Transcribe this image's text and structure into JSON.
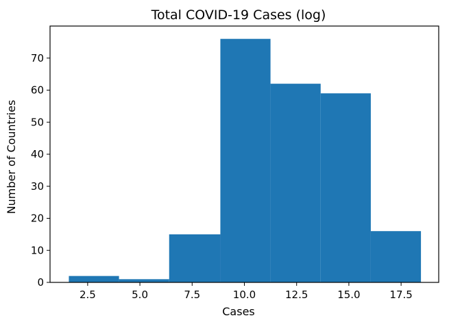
{
  "chart_data": {
    "type": "bar",
    "title": "Total COVID-19 Cases (log)",
    "xlabel": "Cases",
    "ylabel": "Number of Countries",
    "xlim": [
      0.7,
      19.3
    ],
    "ylim": [
      0,
      80
    ],
    "xticks": [
      "2.5",
      "5.0",
      "7.5",
      "10.0",
      "12.5",
      "15.0",
      "17.5"
    ],
    "xtick_values": [
      2.5,
      5.0,
      7.5,
      10.0,
      12.5,
      15.0,
      17.5
    ],
    "yticks": [
      "0",
      "10",
      "20",
      "30",
      "40",
      "50",
      "60",
      "70"
    ],
    "ytick_values": [
      0,
      10,
      20,
      30,
      40,
      50,
      60,
      70
    ],
    "bins": [
      {
        "x0": 1.6,
        "x1": 4.0,
        "count": 2
      },
      {
        "x0": 4.0,
        "x1": 6.4,
        "count": 1
      },
      {
        "x0": 6.4,
        "x1": 8.85,
        "count": 15
      },
      {
        "x0": 8.85,
        "x1": 11.25,
        "count": 76
      },
      {
        "x0": 11.25,
        "x1": 13.65,
        "count": 62
      },
      {
        "x0": 13.65,
        "x1": 16.05,
        "count": 59
      },
      {
        "x0": 16.05,
        "x1": 18.45,
        "count": 16
      }
    ],
    "grid": false,
    "colors": {
      "bar": "#1f77b4",
      "axes": "#000000"
    }
  }
}
